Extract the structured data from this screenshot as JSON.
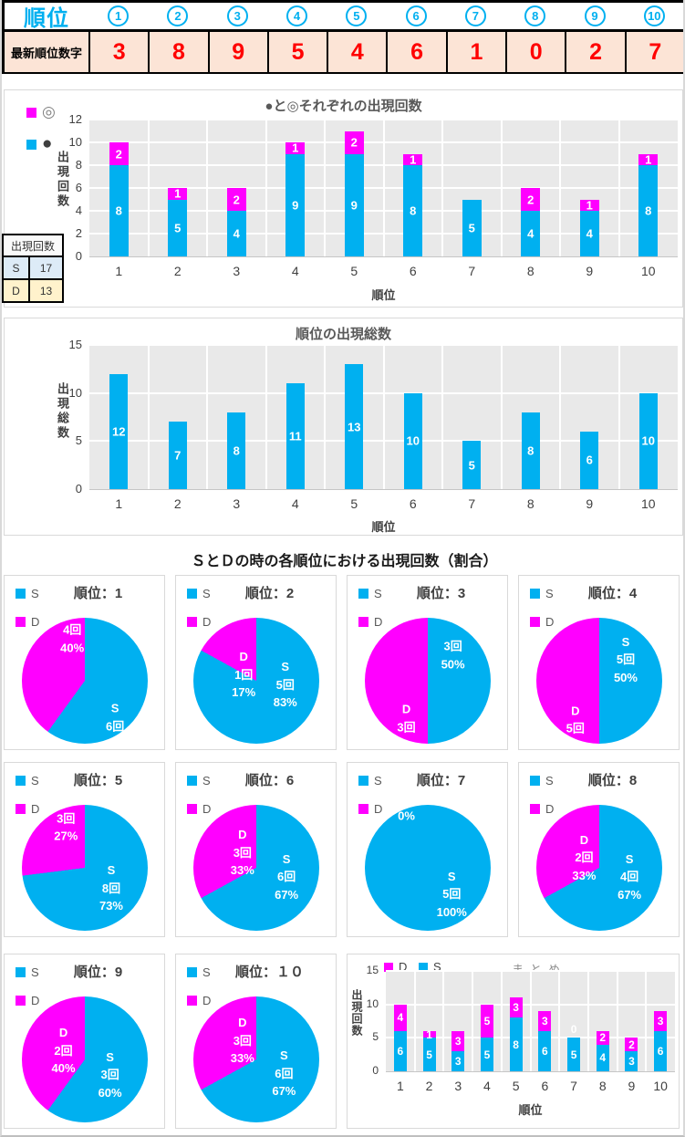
{
  "top_table": {
    "header_label": "順位",
    "ranks": [
      "1",
      "2",
      "3",
      "4",
      "5",
      "6",
      "7",
      "8",
      "9",
      "10"
    ],
    "row_label": "最新順位数字",
    "latest_numbers": [
      "3",
      "8",
      "9",
      "5",
      "4",
      "6",
      "1",
      "0",
      "2",
      "7"
    ]
  },
  "count_table": {
    "header": "出現回数",
    "rows": [
      {
        "label": "S",
        "value": "17",
        "bg": "#DDEBF7"
      },
      {
        "label": "D",
        "value": "13",
        "bg": "#FFF2CC"
      }
    ]
  },
  "section_title": "ＳとＤの時の各順位における出現回数（割合）",
  "colors": {
    "cyan": "#00B0F0",
    "magenta": "#FF00FF",
    "red": "#FF0000",
    "peach_bg": "#FCE4D6",
    "plot_bg": "#E9E9E9",
    "grid_line": "#FFFFFF",
    "title_gray": "#595959",
    "tick_gray": "#404040",
    "black": "#000000",
    "white": "#FFFFFF"
  },
  "chart_data": [
    {
      "id": "marks_chart",
      "type": "bar",
      "stacked": true,
      "title": "●と◎それぞれの出現回数",
      "xlabel": "順位",
      "ylabel": "出現回数",
      "ylim": [
        0,
        12
      ],
      "yticks": [
        0,
        2,
        4,
        6,
        8,
        10,
        12
      ],
      "grid": true,
      "categories": [
        "1",
        "2",
        "3",
        "4",
        "5",
        "6",
        "7",
        "8",
        "9",
        "10"
      ],
      "series": [
        {
          "name": "●",
          "color": "cyan",
          "values": [
            8,
            5,
            4,
            9,
            9,
            8,
            5,
            4,
            4,
            8
          ]
        },
        {
          "name": "◎",
          "color": "magenta",
          "values": [
            2,
            1,
            2,
            1,
            2,
            1,
            0,
            2,
            1,
            1
          ]
        }
      ],
      "legend": [
        {
          "label": "◎",
          "color": "magenta"
        },
        {
          "label": "●",
          "color": "cyan"
        }
      ],
      "legend_position": "left-top"
    },
    {
      "id": "totals_chart",
      "type": "bar",
      "stacked": false,
      "title": "順位の出現総数",
      "xlabel": "順位",
      "ylabel": "出現総数",
      "ylim": [
        0,
        15
      ],
      "yticks": [
        0,
        5,
        10,
        15
      ],
      "grid": true,
      "categories": [
        "1",
        "2",
        "3",
        "4",
        "5",
        "6",
        "7",
        "8",
        "9",
        "10"
      ],
      "values": [
        12,
        7,
        8,
        11,
        13,
        10,
        5,
        8,
        6,
        10
      ],
      "color": "cyan"
    },
    {
      "id": "pie_rank_1",
      "type": "pie",
      "title": "順位：1",
      "legend": [
        "S",
        "D"
      ],
      "slices": [
        {
          "name": "S",
          "count": 6,
          "pct": 60,
          "color": "cyan",
          "label_lines": [
            "S",
            "6回"
          ],
          "label_pos": {
            "x": 74,
            "y": 79
          }
        },
        {
          "name": "D",
          "count": 4,
          "pct": 40,
          "color": "magenta",
          "label_lines": [
            "4回",
            "40%"
          ],
          "label_pos": {
            "x": 40,
            "y": 17
          }
        }
      ]
    },
    {
      "id": "pie_rank_2",
      "type": "pie",
      "title": "順位：2",
      "legend": [
        "S",
        "D"
      ],
      "slices": [
        {
          "name": "S",
          "count": 5,
          "pct": 83,
          "color": "cyan",
          "label_lines": [
            "S",
            "5回",
            "83%"
          ],
          "label_pos": {
            "x": 73,
            "y": 53
          }
        },
        {
          "name": "D",
          "count": 1,
          "pct": 17,
          "color": "magenta",
          "label_lines": [
            "D",
            "1回",
            "17%"
          ],
          "label_pos": {
            "x": 40,
            "y": 45
          }
        }
      ]
    },
    {
      "id": "pie_rank_3",
      "type": "pie",
      "title": "順位：3",
      "legend": [
        "S",
        "D"
      ],
      "slices": [
        {
          "name": "S",
          "count": 3,
          "pct": 50,
          "color": "cyan",
          "label_lines": [
            "3回",
            "50%"
          ],
          "label_pos": {
            "x": 70,
            "y": 30
          }
        },
        {
          "name": "D",
          "count": 3,
          "pct": 50,
          "color": "magenta",
          "label_lines": [
            "D",
            "3回"
          ],
          "label_pos": {
            "x": 33,
            "y": 80
          }
        }
      ]
    },
    {
      "id": "pie_rank_4",
      "type": "pie",
      "title": "順位：4",
      "legend": [
        "S",
        "D"
      ],
      "slices": [
        {
          "name": "S",
          "count": 5,
          "pct": 50,
          "color": "cyan",
          "label_lines": [
            "S",
            "5回",
            "50%"
          ],
          "label_pos": {
            "x": 71,
            "y": 33
          }
        },
        {
          "name": "D",
          "count": 5,
          "pct": 50,
          "color": "magenta",
          "label_lines": [
            "D",
            "5回"
          ],
          "label_pos": {
            "x": 31,
            "y": 81
          }
        }
      ]
    },
    {
      "id": "pie_rank_5",
      "type": "pie",
      "title": "順位：5",
      "legend": [
        "S",
        "D"
      ],
      "slices": [
        {
          "name": "S",
          "count": 8,
          "pct": 73,
          "color": "cyan",
          "label_lines": [
            "S",
            "8回",
            "73%"
          ],
          "label_pos": {
            "x": 71,
            "y": 66
          }
        },
        {
          "name": "D",
          "count": 3,
          "pct": 27,
          "color": "magenta",
          "label_lines": [
            "3回",
            "27%"
          ],
          "label_pos": {
            "x": 35,
            "y": 18
          }
        }
      ]
    },
    {
      "id": "pie_rank_6",
      "type": "pie",
      "title": "順位：6",
      "legend": [
        "S",
        "D"
      ],
      "slices": [
        {
          "name": "S",
          "count": 6,
          "pct": 67,
          "color": "cyan",
          "label_lines": [
            "S",
            "6回",
            "67%"
          ],
          "label_pos": {
            "x": 74,
            "y": 57
          }
        },
        {
          "name": "D",
          "count": 3,
          "pct": 33,
          "color": "magenta",
          "label_lines": [
            "D",
            "3回",
            "33%"
          ],
          "label_pos": {
            "x": 39,
            "y": 38
          }
        }
      ]
    },
    {
      "id": "pie_rank_7",
      "type": "pie",
      "title": "順位：7",
      "legend": [
        "S",
        "D"
      ],
      "slices": [
        {
          "name": "S",
          "count": 5,
          "pct": 100,
          "color": "cyan",
          "label_lines": [
            "S",
            "5回",
            "100%"
          ],
          "label_pos": {
            "x": 69,
            "y": 71
          }
        },
        {
          "name": "D",
          "count": 0,
          "pct": 0,
          "color": "magenta",
          "label_lines": [
            "0%"
          ],
          "label_pos": {
            "x": 33,
            "y": 9
          }
        }
      ]
    },
    {
      "id": "pie_rank_8",
      "type": "pie",
      "title": "順位：8",
      "legend": [
        "S",
        "D"
      ],
      "slices": [
        {
          "name": "S",
          "count": 4,
          "pct": 67,
          "color": "cyan",
          "label_lines": [
            "S",
            "4回",
            "67%"
          ],
          "label_pos": {
            "x": 74,
            "y": 57
          }
        },
        {
          "name": "D",
          "count": 2,
          "pct": 33,
          "color": "magenta",
          "label_lines": [
            "D",
            "2回",
            "33%"
          ],
          "label_pos": {
            "x": 38,
            "y": 42
          }
        }
      ]
    },
    {
      "id": "pie_rank_9",
      "type": "pie",
      "title": "順位：9",
      "legend": [
        "S",
        "D"
      ],
      "slices": [
        {
          "name": "S",
          "count": 3,
          "pct": 60,
          "color": "cyan",
          "label_lines": [
            "S",
            "3回",
            "60%"
          ],
          "label_pos": {
            "x": 70,
            "y": 62
          }
        },
        {
          "name": "D",
          "count": 2,
          "pct": 40,
          "color": "magenta",
          "label_lines": [
            "D",
            "2回",
            "40%"
          ],
          "label_pos": {
            "x": 33,
            "y": 43
          }
        }
      ]
    },
    {
      "id": "pie_rank_10",
      "type": "pie",
      "title": "順位：１０",
      "legend": [
        "S",
        "D"
      ],
      "slices": [
        {
          "name": "S",
          "count": 6,
          "pct": 67,
          "color": "cyan",
          "label_lines": [
            "S",
            "6回",
            "67%"
          ],
          "label_pos": {
            "x": 72,
            "y": 61
          }
        },
        {
          "name": "D",
          "count": 3,
          "pct": 33,
          "color": "magenta",
          "label_lines": [
            "D",
            "3回",
            "33%"
          ],
          "label_pos": {
            "x": 39,
            "y": 35
          }
        }
      ]
    },
    {
      "id": "matome_chart",
      "type": "bar",
      "stacked": true,
      "title": "まとめ",
      "xlabel": "順位",
      "ylabel": "出現回数",
      "ylim": [
        0,
        15
      ],
      "yticks": [
        0,
        5,
        10,
        15
      ],
      "grid": true,
      "categories": [
        "1",
        "2",
        "3",
        "4",
        "5",
        "6",
        "7",
        "8",
        "9",
        "10"
      ],
      "series": [
        {
          "name": "S",
          "color": "cyan",
          "values": [
            6,
            5,
            3,
            5,
            8,
            6,
            5,
            4,
            3,
            6
          ]
        },
        {
          "name": "D",
          "color": "magenta",
          "values": [
            4,
            1,
            3,
            5,
            3,
            3,
            0,
            2,
            2,
            3
          ]
        }
      ],
      "legend": [
        {
          "label": "D",
          "color": "magenta"
        },
        {
          "label": "S",
          "color": "cyan"
        }
      ],
      "zero_label_shown": true
    }
  ]
}
